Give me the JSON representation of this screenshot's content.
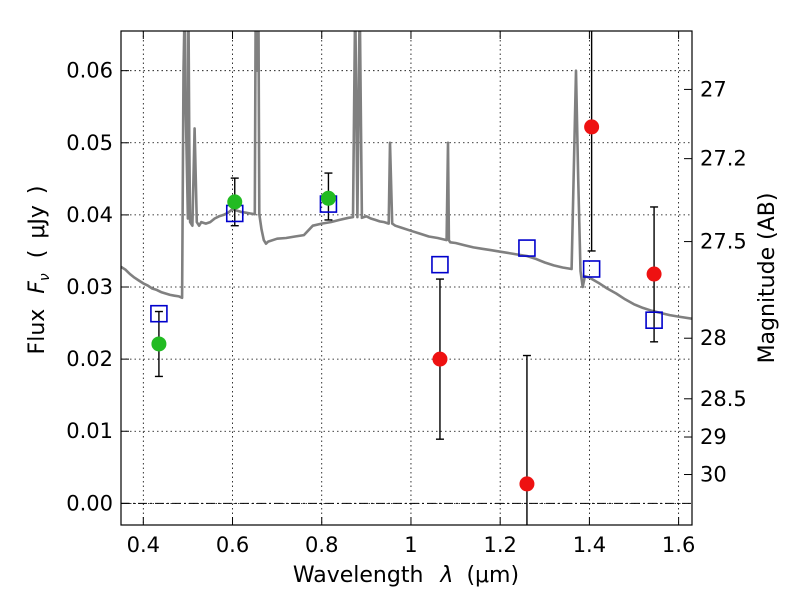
{
  "chart_data": {
    "type": "scatter",
    "title": "",
    "xlabel_parts": {
      "word": "Wavelength",
      "symbol": "λ",
      "unit_open": "(",
      "unit": "μm",
      "unit_close": ")"
    },
    "ylabel_parts": {
      "word": "Flux",
      "symbol": "F",
      "symbol_sub": "ν",
      "unit_open": "(",
      "unit": "μJy",
      "unit_close": ")"
    },
    "y2label": "Magnitude (AB)",
    "xlim": [
      0.35,
      1.63
    ],
    "ylim": [
      -0.003,
      0.0655
    ],
    "x_ticks": [
      {
        "value": 0.4,
        "label": "0.4"
      },
      {
        "value": 0.6,
        "label": "0.6"
      },
      {
        "value": 0.8,
        "label": "0.8"
      },
      {
        "value": 1.0,
        "label": "1"
      },
      {
        "value": 1.2,
        "label": "1.2"
      },
      {
        "value": 1.4,
        "label": "1.4"
      },
      {
        "value": 1.6,
        "label": "1.6"
      }
    ],
    "y_ticks": [
      {
        "value": 0.0,
        "label": "0.00"
      },
      {
        "value": 0.01,
        "label": "0.01"
      },
      {
        "value": 0.02,
        "label": "0.02"
      },
      {
        "value": 0.03,
        "label": "0.03"
      },
      {
        "value": 0.04,
        "label": "0.04"
      },
      {
        "value": 0.05,
        "label": "0.05"
      },
      {
        "value": 0.06,
        "label": "0.06"
      }
    ],
    "y2_ticks": [
      {
        "label": "27",
        "flux": 0.0574
      },
      {
        "label": "27.2",
        "flux": 0.0478
      },
      {
        "label": "27.5",
        "flux": 0.0363
      },
      {
        "label": "28",
        "flux": 0.0229
      },
      {
        "label": "28.5",
        "flux": 0.0145
      },
      {
        "label": "29",
        "flux": 0.0092
      },
      {
        "label": "30",
        "flux": 0.004
      }
    ],
    "grid": true,
    "zero_line": true,
    "colors": {
      "spectrum": "#808080",
      "model": "#0000cc",
      "detected": "#22bb22",
      "upper": "#ee1111",
      "errorbar": "#000000",
      "grid": "#000000",
      "frame": "#000000"
    },
    "spectrum": {
      "name": "",
      "x": [
        0.35,
        0.36,
        0.37,
        0.38,
        0.39,
        0.4,
        0.41,
        0.42,
        0.43,
        0.44,
        0.45,
        0.46,
        0.47,
        0.48,
        0.487,
        0.49,
        0.493,
        0.495,
        0.5,
        0.501,
        0.503,
        0.505,
        0.51,
        0.515,
        0.52,
        0.525,
        0.53,
        0.54,
        0.55,
        0.56,
        0.57,
        0.58,
        0.59,
        0.6,
        0.61,
        0.62,
        0.63,
        0.64,
        0.65,
        0.652,
        0.655,
        0.658,
        0.66,
        0.665,
        0.67,
        0.675,
        0.68,
        0.7,
        0.72,
        0.74,
        0.76,
        0.78,
        0.8,
        0.82,
        0.84,
        0.86,
        0.87,
        0.875,
        0.88,
        0.885,
        0.89,
        0.9,
        0.91,
        0.92,
        0.93,
        0.94,
        0.95,
        0.953,
        0.958,
        0.965,
        0.98,
        1.0,
        1.02,
        1.04,
        1.06,
        1.08,
        1.083,
        1.085,
        1.088,
        1.1,
        1.12,
        1.14,
        1.16,
        1.18,
        1.2,
        1.22,
        1.24,
        1.26,
        1.28,
        1.3,
        1.32,
        1.34,
        1.36,
        1.37,
        1.375,
        1.38,
        1.385,
        1.39,
        1.4,
        1.42,
        1.44,
        1.46,
        1.48,
        1.5,
        1.52,
        1.54,
        1.56,
        1.58,
        1.6,
        1.63
      ],
      "y": [
        0.0328,
        0.0324,
        0.0318,
        0.0313,
        0.0309,
        0.0305,
        0.0302,
        0.0298,
        0.0296,
        0.0293,
        0.0291,
        0.0289,
        0.0288,
        0.0287,
        0.0285,
        0.06,
        0.07,
        0.055,
        0.0395,
        0.07,
        0.05,
        0.039,
        0.0385,
        0.052,
        0.039,
        0.0385,
        0.039,
        0.0388,
        0.039,
        0.0395,
        0.0398,
        0.04,
        0.0403,
        0.0408,
        0.0406,
        0.0404,
        0.0403,
        0.0402,
        0.0401,
        0.07,
        0.06,
        0.07,
        0.0401,
        0.038,
        0.0365,
        0.036,
        0.0363,
        0.0367,
        0.0368,
        0.037,
        0.0372,
        0.0385,
        0.0388,
        0.039,
        0.0393,
        0.0396,
        0.0397,
        0.07,
        0.0397,
        0.07,
        0.0396,
        0.0398,
        0.0395,
        0.0393,
        0.0391,
        0.039,
        0.0388,
        0.05,
        0.0388,
        0.0385,
        0.0382,
        0.0378,
        0.0374,
        0.037,
        0.0368,
        0.0365,
        0.05,
        0.0365,
        0.0362,
        0.0361,
        0.0358,
        0.0355,
        0.0353,
        0.0351,
        0.0349,
        0.0347,
        0.0345,
        0.0343,
        0.0339,
        0.0334,
        0.033,
        0.0327,
        0.0325,
        0.06,
        0.045,
        0.0322,
        0.03,
        0.0315,
        0.0313,
        0.0306,
        0.0298,
        0.0291,
        0.0283,
        0.0276,
        0.0271,
        0.0267,
        0.0264,
        0.0261,
        0.0259,
        0.0256
      ]
    },
    "model_points": {
      "name": "",
      "x": [
        0.435,
        0.605,
        0.815,
        1.065,
        1.26,
        1.405,
        1.545
      ],
      "y": [
        0.0263,
        0.0402,
        0.0415,
        0.0331,
        0.0354,
        0.0325,
        0.0254
      ]
    },
    "detections": {
      "name": "",
      "x": [
        0.435,
        0.605,
        0.815
      ],
      "y": [
        0.0221,
        0.0418,
        0.0423
      ],
      "yerr_low": [
        0.0045,
        0.0033,
        0.003
      ],
      "yerr_high": [
        0.0045,
        0.0033,
        0.0035
      ]
    },
    "non_detections": {
      "name": "",
      "x": [
        1.065,
        1.26,
        1.405,
        1.545
      ],
      "y": [
        0.02,
        0.0027,
        0.0522,
        0.0318
      ],
      "yerr_low": [
        0.0111,
        0.0065,
        0.0172,
        0.0094
      ],
      "yerr_high": [
        0.0111,
        0.0178,
        0.0135,
        0.0093
      ]
    }
  }
}
